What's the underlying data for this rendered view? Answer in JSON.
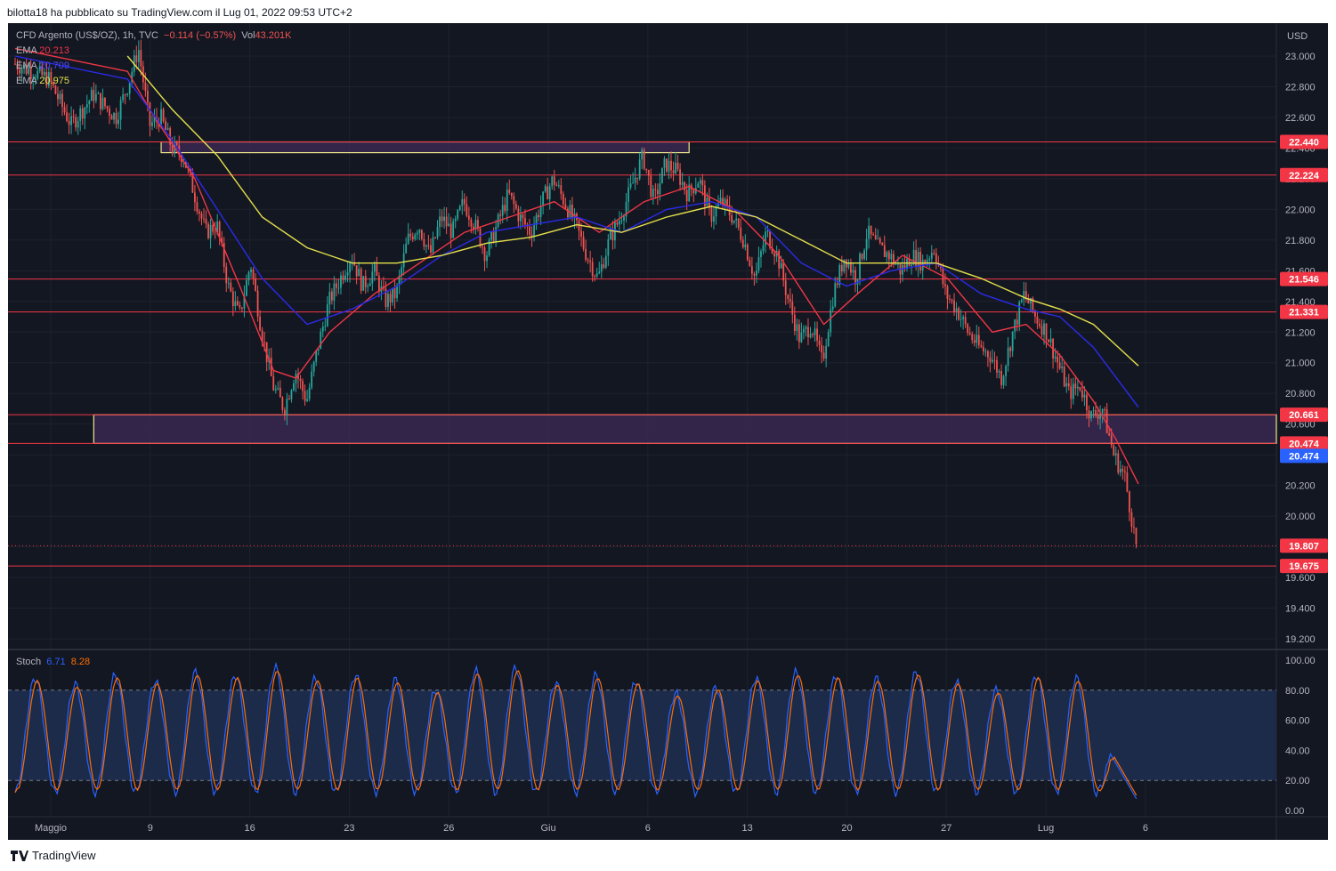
{
  "header": {
    "text": "bilotta18 ha pubblicato su TradingView.com il Lug 01, 2022 09:53 UTC+2"
  },
  "footer": {
    "brand": "TradingView"
  },
  "colors": {
    "bg": "#131722",
    "grid": "#1e222d",
    "text": "#b2b5be",
    "up": "#26a69a",
    "down": "#ef5350",
    "ema1": "#f23645",
    "ema2": "#2b2be8",
    "ema3": "#e5e04a",
    "hline": "#f23645",
    "zone_fill": "#3f2a57",
    "zone_border": "#f0e68c",
    "stoch_k": "#2962ff",
    "stoch_d": "#ff6d00",
    "stoch_band": "#1c2b49"
  },
  "legend": {
    "symbol": "CFD Argento (US$/OZ), 1h, TVC",
    "change": "−0.114 (−0.57%)",
    "vol_label": "Vol",
    "vol_value": "43.201K",
    "ema": [
      {
        "label": "EMA",
        "value": "20.213",
        "color": "#f23645"
      },
      {
        "label": "EMA",
        "value": "20.709",
        "color": "#2b2be8"
      },
      {
        "label": "EMA",
        "value": "20.975",
        "color": "#e5e04a"
      }
    ]
  },
  "stoch_legend": {
    "label": "Stoch",
    "k": "6.71",
    "d": "8.28"
  },
  "chart_data": [
    {
      "type": "candlestick",
      "title": "CFD Argento (US$/OZ), 1h, TVC",
      "currency": "USD",
      "ylim": [
        19.1,
        23.1
      ],
      "y_ticks": [
        "23.000",
        "22.800",
        "22.600",
        "22.400",
        "22.200",
        "22.000",
        "21.800",
        "21.600",
        "21.400",
        "21.200",
        "21.000",
        "20.800",
        "20.600",
        "20.400",
        "20.200",
        "20.000",
        "19.800",
        "19.600",
        "19.400",
        "19.200"
      ],
      "x_labels": [
        "Maggio",
        "9",
        "16",
        "23",
        "26",
        "Giu",
        "6",
        "13",
        "20",
        "27",
        "Lug",
        "6"
      ],
      "price_path": [
        [
          0,
          22.95
        ],
        [
          3,
          22.85
        ],
        [
          5,
          22.55
        ],
        [
          7,
          22.75
        ],
        [
          9,
          22.6
        ],
        [
          10,
          22.8
        ],
        [
          11,
          23.05
        ],
        [
          12,
          22.55
        ],
        [
          13,
          22.6
        ],
        [
          14,
          22.4
        ],
        [
          15,
          22.35
        ],
        [
          16,
          22.1
        ],
        [
          17,
          21.85
        ],
        [
          18,
          21.9
        ],
        [
          19,
          21.5
        ],
        [
          20,
          21.3
        ],
        [
          21,
          21.65
        ],
        [
          22,
          21.2
        ],
        [
          23,
          20.85
        ],
        [
          24,
          20.7
        ],
        [
          25,
          20.95
        ],
        [
          26,
          20.75
        ],
        [
          27,
          21.1
        ],
        [
          28,
          21.4
        ],
        [
          29,
          21.55
        ],
        [
          30,
          21.7
        ],
        [
          31,
          21.5
        ],
        [
          32,
          21.6
        ],
        [
          33,
          21.4
        ],
        [
          34,
          21.45
        ],
        [
          35,
          21.8
        ],
        [
          36,
          21.9
        ],
        [
          37,
          21.7
        ],
        [
          38,
          21.95
        ],
        [
          39,
          21.85
        ],
        [
          40,
          22.05
        ],
        [
          41,
          21.9
        ],
        [
          42,
          21.7
        ],
        [
          43,
          21.9
        ],
        [
          44,
          22.1
        ],
        [
          45,
          21.95
        ],
        [
          46,
          21.85
        ],
        [
          47,
          22.05
        ],
        [
          48,
          22.2
        ],
        [
          49,
          22.05
        ],
        [
          50,
          21.9
        ],
        [
          51,
          21.7
        ],
        [
          52,
          21.55
        ],
        [
          53,
          21.8
        ],
        [
          54,
          21.95
        ],
        [
          55,
          22.15
        ],
        [
          56,
          22.35
        ],
        [
          57,
          22.05
        ],
        [
          58,
          22.3
        ],
        [
          59,
          22.25
        ],
        [
          60,
          22.1
        ],
        [
          61,
          22.2
        ],
        [
          62,
          21.95
        ],
        [
          63,
          22.05
        ],
        [
          64,
          21.95
        ],
        [
          65,
          21.8
        ],
        [
          66,
          21.55
        ],
        [
          67,
          21.85
        ],
        [
          68,
          21.7
        ],
        [
          69,
          21.4
        ],
        [
          70,
          21.15
        ],
        [
          71,
          21.25
        ],
        [
          72,
          21.0
        ],
        [
          73,
          21.45
        ],
        [
          74,
          21.7
        ],
        [
          75,
          21.55
        ],
        [
          76,
          21.85
        ],
        [
          77,
          21.75
        ],
        [
          78,
          21.7
        ],
        [
          79,
          21.6
        ],
        [
          80,
          21.7
        ],
        [
          81,
          21.65
        ],
        [
          82,
          21.75
        ],
        [
          83,
          21.45
        ],
        [
          84,
          21.35
        ],
        [
          85,
          21.2
        ],
        [
          86,
          21.1
        ],
        [
          87,
          21.05
        ],
        [
          88,
          20.9
        ],
        [
          89,
          21.2
        ],
        [
          90,
          21.45
        ],
        [
          91,
          21.3
        ],
        [
          92,
          21.2
        ],
        [
          93,
          21.0
        ],
        [
          94,
          20.8
        ],
        [
          95,
          20.85
        ],
        [
          96,
          20.65
        ],
        [
          97,
          20.7
        ],
        [
          98,
          20.4
        ],
        [
          99,
          20.25
        ],
        [
          100,
          19.81
        ]
      ],
      "ema_series": [
        {
          "name": "EMA",
          "value": "20.213",
          "points": [
            [
              0,
              23.05
            ],
            [
              10,
              22.9
            ],
            [
              12,
              22.65
            ],
            [
              16,
              22.2
            ],
            [
              20,
              21.5
            ],
            [
              23,
              20.95
            ],
            [
              25,
              20.9
            ],
            [
              28,
              21.2
            ],
            [
              32,
              21.45
            ],
            [
              36,
              21.65
            ],
            [
              40,
              21.85
            ],
            [
              44,
              21.95
            ],
            [
              48,
              22.05
            ],
            [
              52,
              21.85
            ],
            [
              56,
              22.05
            ],
            [
              60,
              22.15
            ],
            [
              64,
              22.0
            ],
            [
              68,
              21.7
            ],
            [
              72,
              21.25
            ],
            [
              75,
              21.45
            ],
            [
              79,
              21.7
            ],
            [
              83,
              21.55
            ],
            [
              87,
              21.2
            ],
            [
              90,
              21.25
            ],
            [
              93,
              21.05
            ],
            [
              96,
              20.75
            ],
            [
              98,
              20.5
            ],
            [
              100,
              20.21
            ]
          ]
        },
        {
          "name": "EMA",
          "value": "20.709",
          "points": [
            [
              0,
              23.0
            ],
            [
              10,
              22.85
            ],
            [
              14,
              22.45
            ],
            [
              18,
              22.0
            ],
            [
              22,
              21.55
            ],
            [
              26,
              21.25
            ],
            [
              30,
              21.35
            ],
            [
              34,
              21.5
            ],
            [
              38,
              21.7
            ],
            [
              42,
              21.85
            ],
            [
              46,
              21.9
            ],
            [
              50,
              21.95
            ],
            [
              54,
              21.85
            ],
            [
              58,
              22.0
            ],
            [
              62,
              22.05
            ],
            [
              66,
              21.95
            ],
            [
              70,
              21.65
            ],
            [
              74,
              21.5
            ],
            [
              78,
              21.6
            ],
            [
              82,
              21.65
            ],
            [
              86,
              21.45
            ],
            [
              90,
              21.35
            ],
            [
              93,
              21.3
            ],
            [
              96,
              21.1
            ],
            [
              100,
              20.71
            ]
          ]
        },
        {
          "name": "EMA",
          "value": "20.975",
          "points": [
            [
              10,
              23.0
            ],
            [
              14,
              22.65
            ],
            [
              18,
              22.35
            ],
            [
              22,
              21.95
            ],
            [
              26,
              21.75
            ],
            [
              30,
              21.65
            ],
            [
              34,
              21.65
            ],
            [
              38,
              21.7
            ],
            [
              42,
              21.78
            ],
            [
              46,
              21.82
            ],
            [
              50,
              21.9
            ],
            [
              54,
              21.85
            ],
            [
              58,
              21.95
            ],
            [
              62,
              22.02
            ],
            [
              66,
              21.95
            ],
            [
              70,
              21.8
            ],
            [
              74,
              21.65
            ],
            [
              78,
              21.65
            ],
            [
              82,
              21.65
            ],
            [
              86,
              21.55
            ],
            [
              90,
              21.42
            ],
            [
              93,
              21.35
            ],
            [
              96,
              21.25
            ],
            [
              100,
              20.98
            ]
          ]
        }
      ],
      "horizontal_levels": [
        {
          "price": 22.44,
          "label": "22.440"
        },
        {
          "price": 22.224,
          "label": "22.224"
        },
        {
          "price": 21.546,
          "label": "21.546"
        },
        {
          "price": 21.331,
          "label": "21.331"
        },
        {
          "price": 20.661,
          "label": "20.661"
        },
        {
          "price": 20.474,
          "label": "20.474"
        },
        {
          "price": 19.675,
          "label": "19.675"
        }
      ],
      "current_price": {
        "price": 19.807,
        "label": "19.807"
      },
      "zones": [
        {
          "name": "resistance-zone",
          "from_x": 13,
          "to_x": 60,
          "top": 22.44,
          "bottom": 22.37
        },
        {
          "name": "support-zone",
          "from_x": 7,
          "to_x": 100,
          "top": 20.661,
          "bottom": 20.474
        }
      ],
      "blue_marker": {
        "price": 20.474,
        "label": "20.474"
      }
    },
    {
      "type": "line",
      "title": "Stoch",
      "ylim": [
        0,
        100
      ],
      "y_ticks": [
        "100.00",
        "80.00",
        "60.00",
        "40.00",
        "20.00",
        "0.00"
      ],
      "band": [
        20,
        80
      ],
      "series": [
        {
          "name": "%K",
          "value": "6.71"
        },
        {
          "name": "%D",
          "value": "8.28"
        }
      ],
      "cycle_peaks": [
        88,
        84,
        90,
        86,
        92,
        90,
        95,
        88,
        90,
        87,
        80,
        93,
        95,
        85,
        90,
        86,
        78,
        82,
        88,
        92,
        90,
        88,
        92,
        86,
        80,
        90,
        88,
        42
      ]
    }
  ]
}
